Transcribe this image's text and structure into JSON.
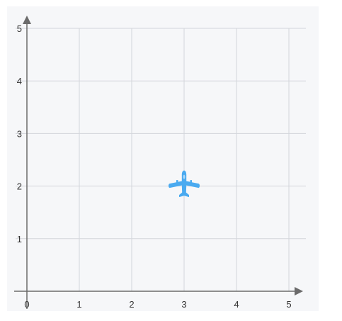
{
  "chart_data": {
    "type": "scatter",
    "title": "",
    "xlabel": "",
    "ylabel": "",
    "xlim": [
      0,
      5
    ],
    "ylim": [
      0,
      5
    ],
    "x_ticks": [
      "0",
      "1",
      "2",
      "3",
      "4",
      "5"
    ],
    "y_ticks": [
      "1",
      "2",
      "3",
      "4",
      "5"
    ],
    "grid": true,
    "points": [
      {
        "x": 3,
        "y": 2,
        "marker": "airplane-icon"
      }
    ]
  },
  "colors": {
    "panel_background": "#f6f7f9",
    "grid": "#d3d6db",
    "axis": "#6b6b6b",
    "marker": "#4aaaf0"
  }
}
